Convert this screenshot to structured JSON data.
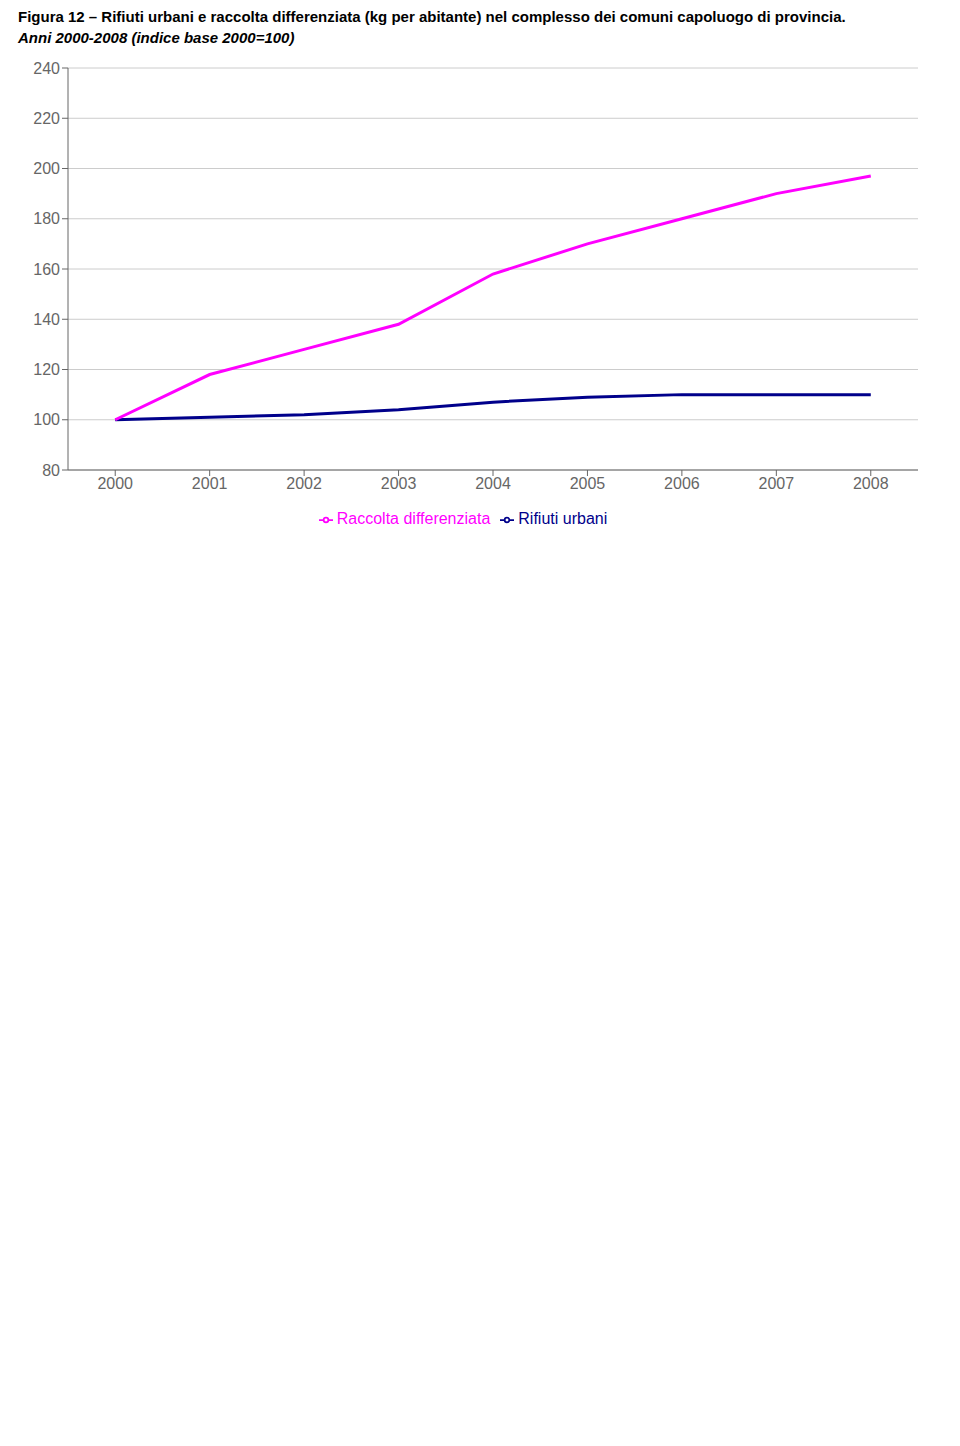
{
  "chart_data": {
    "type": "line",
    "title": "Figura 12 – Rifiuti urbani e raccolta differenziata (kg per abitante) nel complesso dei comuni capoluogo di provincia.",
    "subtitle": "Anni 2000-2008 (indice base 2000=100)",
    "x": [
      2000,
      2001,
      2002,
      2003,
      2004,
      2005,
      2006,
      2007,
      2008
    ],
    "series": [
      {
        "name": "Rifiuti urbani",
        "color": "#00008B",
        "values": [
          100,
          101,
          102,
          104,
          107,
          109,
          110,
          110,
          110
        ]
      },
      {
        "name": "Raccolta differenziata",
        "color": "#FF00FF",
        "values": [
          100,
          118,
          128,
          138,
          158,
          170,
          180,
          190,
          197
        ]
      }
    ],
    "xlim": [
      1999.5,
      2008.5
    ],
    "xticks": [
      2000,
      2001,
      2002,
      2003,
      2004,
      2005,
      2006,
      2007,
      2008
    ],
    "ylim": [
      80,
      240
    ],
    "yticks": [
      80,
      100,
      120,
      140,
      160,
      180,
      200,
      220,
      240
    ],
    "grid": "y",
    "legend": "bottom"
  }
}
